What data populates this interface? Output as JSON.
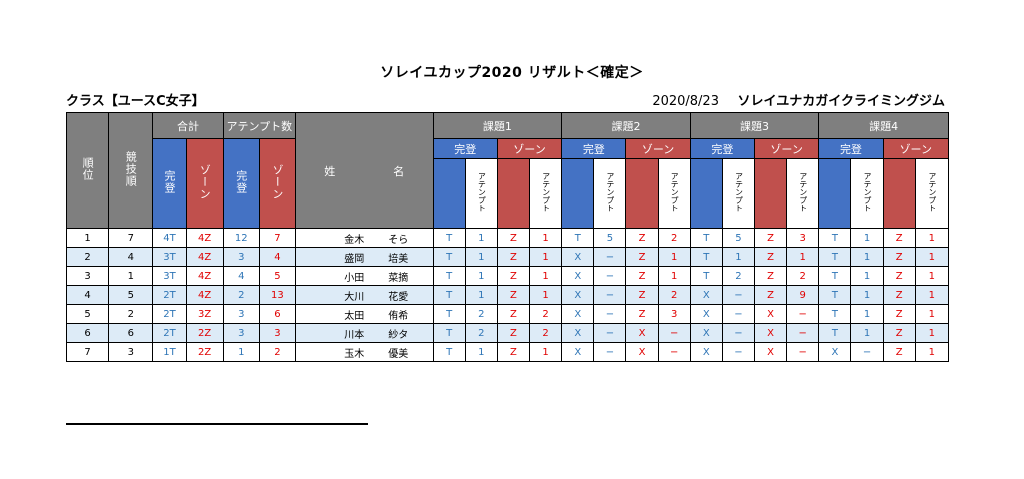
{
  "title": "ソレイユカップ2020 リザルト＜確定＞",
  "class_label": "クラス【ユースC女子】",
  "date": "2020/8/23",
  "venue": "ソレイユナカガイクライミングジム",
  "headers": {
    "rank": "順位",
    "order": "競技順",
    "total": "合計",
    "attempts": "アテンプト数",
    "top": "完登",
    "zone": "ゾーン",
    "attempt": "アテンプト",
    "surname": "姓",
    "given": "名",
    "problems": [
      "課題1",
      "課題2",
      "課題3",
      "課題4"
    ]
  },
  "rows": [
    {
      "rank": "1",
      "order": "7",
      "t": "4T",
      "z": "4Z",
      "ta": "12",
      "za": "7",
      "sur": "金木",
      "giv": "そら",
      "p": [
        [
          "T",
          "1",
          "Z",
          "1"
        ],
        [
          "T",
          "5",
          "Z",
          "2"
        ],
        [
          "T",
          "5",
          "Z",
          "3"
        ],
        [
          "T",
          "1",
          "Z",
          "1"
        ]
      ]
    },
    {
      "rank": "2",
      "order": "4",
      "t": "3T",
      "z": "4Z",
      "ta": "3",
      "za": "4",
      "sur": "盛岡",
      "giv": "培美",
      "p": [
        [
          "T",
          "1",
          "Z",
          "1"
        ],
        [
          "X",
          "−",
          "Z",
          "1"
        ],
        [
          "T",
          "1",
          "Z",
          "1"
        ],
        [
          "T",
          "1",
          "Z",
          "1"
        ]
      ]
    },
    {
      "rank": "3",
      "order": "1",
      "t": "3T",
      "z": "4Z",
      "ta": "4",
      "za": "5",
      "sur": "小田",
      "giv": "菜摘",
      "p": [
        [
          "T",
          "1",
          "Z",
          "1"
        ],
        [
          "X",
          "−",
          "Z",
          "1"
        ],
        [
          "T",
          "2",
          "Z",
          "2"
        ],
        [
          "T",
          "1",
          "Z",
          "1"
        ]
      ]
    },
    {
      "rank": "4",
      "order": "5",
      "t": "2T",
      "z": "4Z",
      "ta": "2",
      "za": "13",
      "sur": "大川",
      "giv": "花愛",
      "p": [
        [
          "T",
          "1",
          "Z",
          "1"
        ],
        [
          "X",
          "−",
          "Z",
          "2"
        ],
        [
          "X",
          "−",
          "Z",
          "9"
        ],
        [
          "T",
          "1",
          "Z",
          "1"
        ]
      ]
    },
    {
      "rank": "5",
      "order": "2",
      "t": "2T",
      "z": "3Z",
      "ta": "3",
      "za": "6",
      "sur": "太田",
      "giv": "侑希",
      "p": [
        [
          "T",
          "2",
          "Z",
          "2"
        ],
        [
          "X",
          "−",
          "Z",
          "3"
        ],
        [
          "X",
          "−",
          "X",
          "−"
        ],
        [
          "T",
          "1",
          "Z",
          "1"
        ]
      ]
    },
    {
      "rank": "6",
      "order": "6",
      "t": "2T",
      "z": "2Z",
      "ta": "3",
      "za": "3",
      "sur": "川本",
      "giv": "紗タ",
      "p": [
        [
          "T",
          "2",
          "Z",
          "2"
        ],
        [
          "X",
          "−",
          "X",
          "−"
        ],
        [
          "X",
          "−",
          "X",
          "−"
        ],
        [
          "T",
          "1",
          "Z",
          "1"
        ]
      ]
    },
    {
      "rank": "7",
      "order": "3",
      "t": "1T",
      "z": "2Z",
      "ta": "1",
      "za": "2",
      "sur": "玉木",
      "giv": "優美",
      "p": [
        [
          "T",
          "1",
          "Z",
          "1"
        ],
        [
          "X",
          "−",
          "X",
          "−"
        ],
        [
          "X",
          "−",
          "X",
          "−"
        ],
        [
          "X",
          "−",
          "Z",
          "1"
        ]
      ]
    }
  ],
  "colors": {
    "top_blue": "#4472c4",
    "zone_red": "#c0504d",
    "header_gray": "#7f7f7f",
    "stripe": "#ddebf7"
  }
}
